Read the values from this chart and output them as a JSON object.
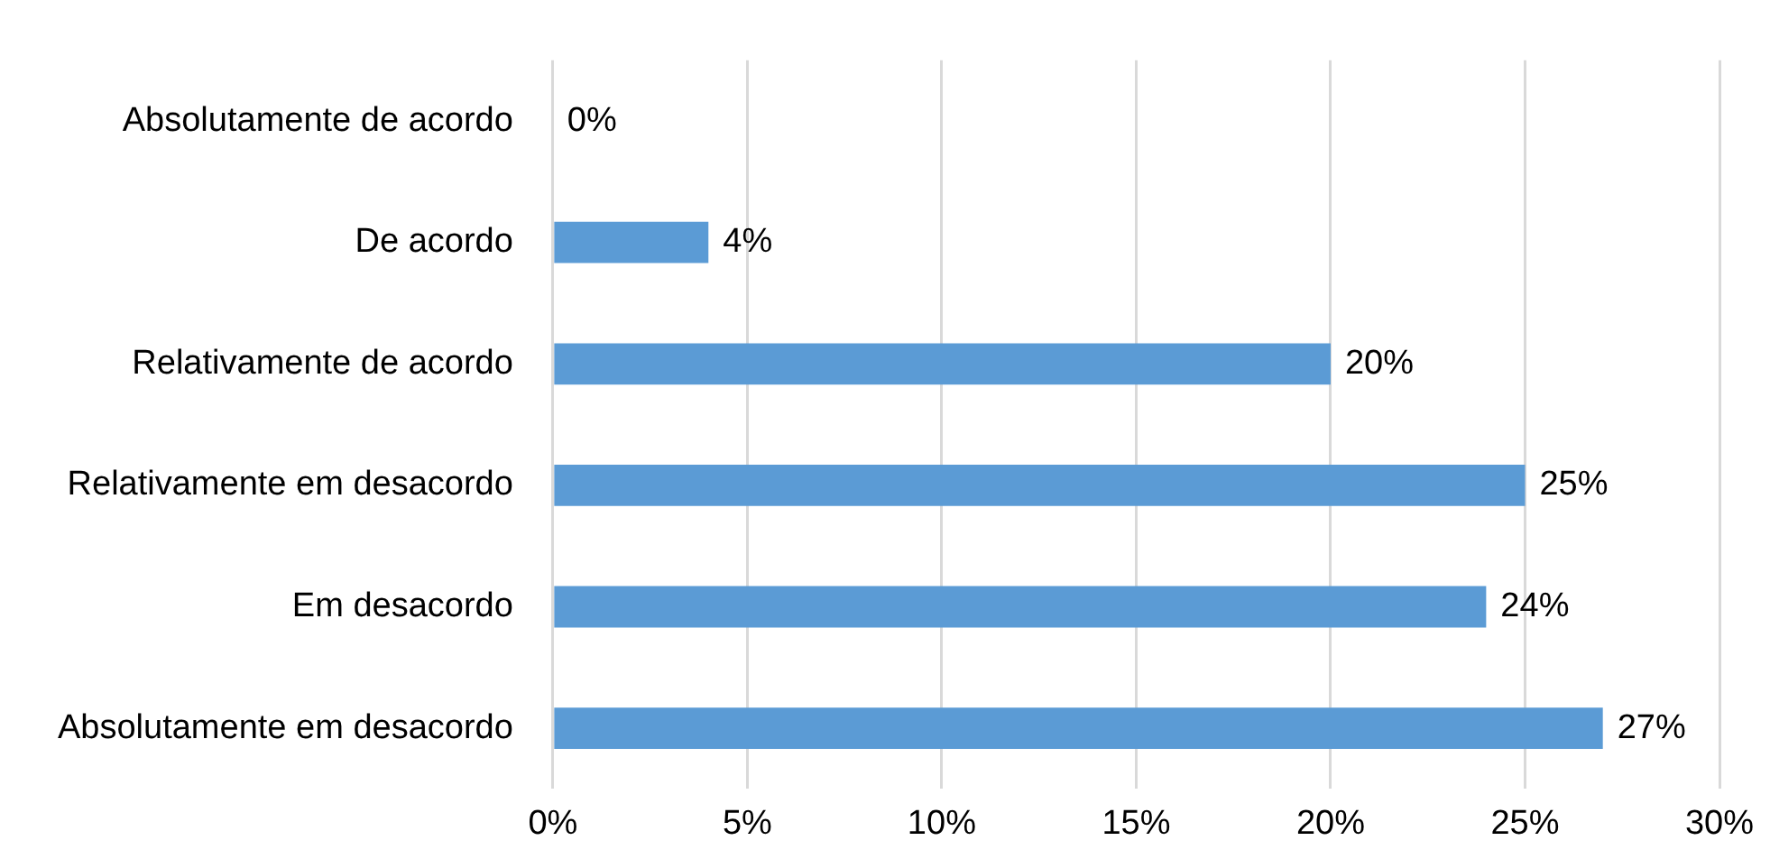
{
  "chart_data": {
    "type": "bar",
    "orientation": "horizontal",
    "categories": [
      "Absolutamente de acordo",
      "De acordo",
      "Relativamente de acordo",
      "Relativamente em desacordo",
      "Em desacordo",
      "Absolutamente em desacordo"
    ],
    "values": [
      0,
      4,
      20,
      25,
      24,
      27
    ],
    "value_labels": [
      "0%",
      "4%",
      "20%",
      "25%",
      "24%",
      "27%"
    ],
    "color": "#5b9bd5",
    "xlim": [
      0,
      30
    ],
    "xticks": [
      {
        "value": 0,
        "label": "0%"
      },
      {
        "value": 5,
        "label": "5%"
      },
      {
        "value": 10,
        "label": "10%"
      },
      {
        "value": 15,
        "label": "15%"
      },
      {
        "value": 20,
        "label": "20%"
      },
      {
        "value": 25,
        "label": "25%"
      },
      {
        "value": 30,
        "label": "30%"
      }
    ],
    "grid": "x",
    "legend": false
  }
}
